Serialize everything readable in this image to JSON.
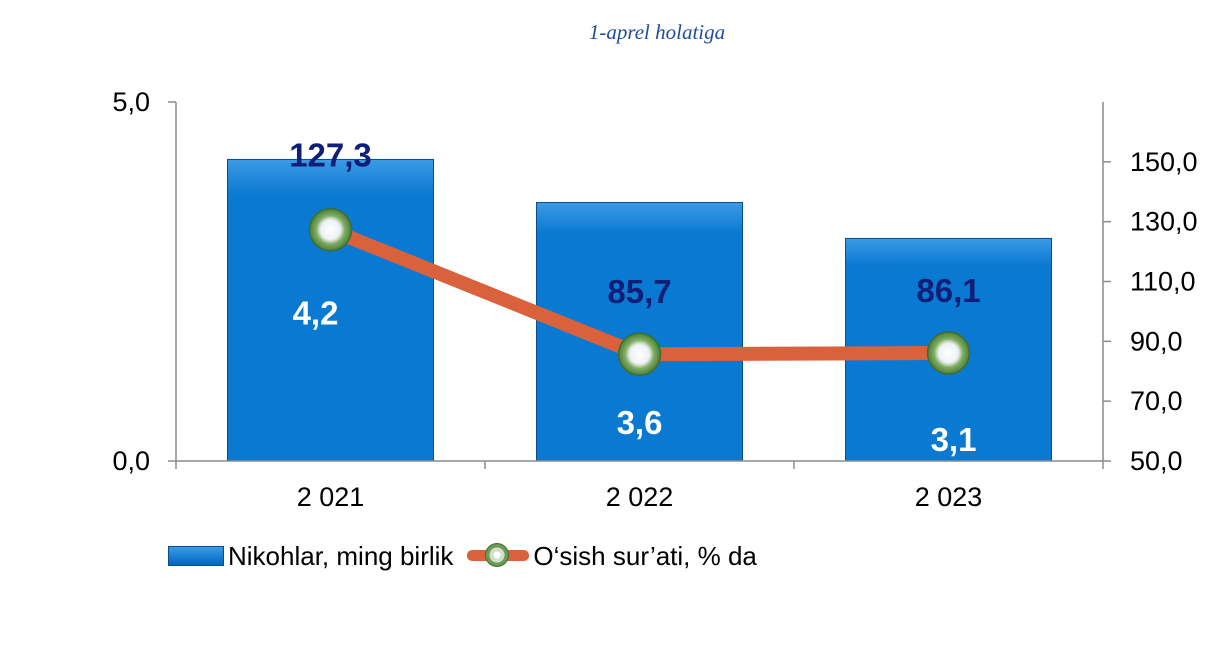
{
  "subtitle": "1-aprel holatiga",
  "colors": {
    "bar": "#0a79d1",
    "bar_top": "#3b9be6",
    "bar_edge": "#0a4c8c",
    "line": "#d9623c",
    "bar_value_label": "#ffffff",
    "line_value_label": "#0f1f78",
    "axis": "#8c8c8c"
  },
  "legend": {
    "bar_label": "Nikohlar, ming birlik",
    "line_label": "O‘sish sur’ati, % da",
    "position": "bottom"
  },
  "chart_data": {
    "type": "bar",
    "categories": [
      "2 021",
      "2 022",
      "2 023"
    ],
    "series": [
      {
        "name": "Nikohlar, ming birlik",
        "type": "bar",
        "axis": "left",
        "values": [
          4.2,
          3.6,
          3.1
        ],
        "labels": [
          "4,2",
          "3,6",
          "3,1"
        ]
      },
      {
        "name": "O‘sish sur’ati, % da",
        "type": "line",
        "axis": "right",
        "values": [
          127.3,
          85.7,
          86.1
        ],
        "labels": [
          "127,3",
          "85,7",
          "86,1"
        ]
      }
    ],
    "y_left": {
      "lim": [
        0,
        5
      ],
      "ticks": [
        "0,0",
        "5,0"
      ]
    },
    "y_right": {
      "lim": [
        50,
        170
      ],
      "ticks": [
        "50,0",
        "70,0",
        "90,0",
        "110,0",
        "130,0",
        "150,0"
      ]
    },
    "grid": false
  }
}
